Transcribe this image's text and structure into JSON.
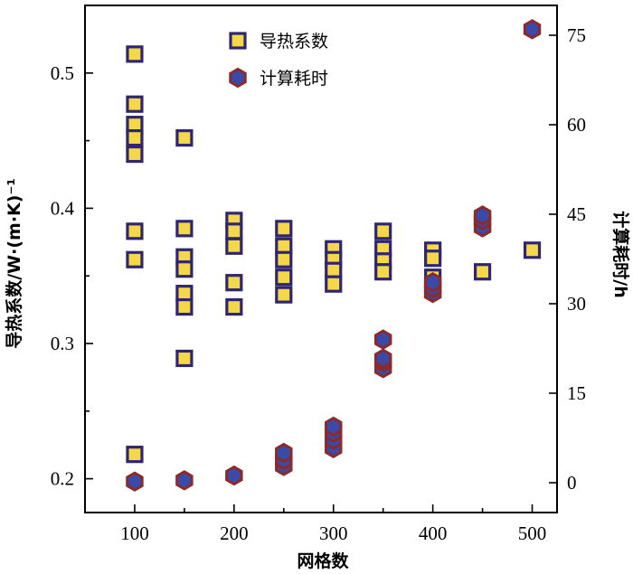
{
  "chart_data": {
    "type": "scatter",
    "xlabel": "网格数",
    "ylabel_left": "导热系数/W·(m·K)⁻¹",
    "ylabel_right": "计算耗时/h",
    "x_ticks": [
      100,
      200,
      300,
      400,
      500
    ],
    "y_left_ticks": [
      0.2,
      0.3,
      0.4,
      0.5
    ],
    "y_right_ticks": [
      0,
      15,
      30,
      45,
      60,
      75
    ],
    "xlim": [
      50,
      525
    ],
    "ylim_left": [
      0.175,
      0.55
    ],
    "ylim_right": [
      -5,
      80
    ],
    "legend_position": "top-center",
    "series": [
      {
        "name": "导热系数",
        "axis": "left",
        "marker": "square",
        "fill": "#f5d84a",
        "edge": "#2e2670",
        "points": [
          [
            100,
            0.514
          ],
          [
            100,
            0.477
          ],
          [
            100,
            0.462
          ],
          [
            100,
            0.452
          ],
          [
            100,
            0.44
          ],
          [
            100,
            0.383
          ],
          [
            100,
            0.362
          ],
          [
            100,
            0.218
          ],
          [
            150,
            0.452
          ],
          [
            150,
            0.385
          ],
          [
            150,
            0.364
          ],
          [
            150,
            0.355
          ],
          [
            150,
            0.337
          ],
          [
            150,
            0.327
          ],
          [
            150,
            0.289
          ],
          [
            200,
            0.391
          ],
          [
            200,
            0.383
          ],
          [
            200,
            0.372
          ],
          [
            200,
            0.345
          ],
          [
            200,
            0.327
          ],
          [
            250,
            0.385
          ],
          [
            250,
            0.372
          ],
          [
            250,
            0.362
          ],
          [
            250,
            0.349
          ],
          [
            250,
            0.336
          ],
          [
            300,
            0.37
          ],
          [
            300,
            0.362
          ],
          [
            300,
            0.354
          ],
          [
            300,
            0.344
          ],
          [
            350,
            0.383
          ],
          [
            350,
            0.37
          ],
          [
            350,
            0.361
          ],
          [
            350,
            0.353
          ],
          [
            400,
            0.369
          ],
          [
            400,
            0.363
          ],
          [
            400,
            0.349
          ],
          [
            450,
            0.353
          ],
          [
            500,
            0.369
          ]
        ]
      },
      {
        "name": "计算耗时",
        "axis": "right",
        "marker": "hexagon",
        "fill": "#3a4aa8",
        "edge": "#8b2a2a",
        "points": [
          [
            100,
            0.2
          ],
          [
            150,
            0.4
          ],
          [
            200,
            1.2
          ],
          [
            250,
            2.8
          ],
          [
            250,
            3.8
          ],
          [
            250,
            5.0
          ],
          [
            300,
            5.8
          ],
          [
            300,
            7.2
          ],
          [
            300,
            8.4
          ],
          [
            300,
            9.4
          ],
          [
            350,
            19.2
          ],
          [
            350,
            20.2
          ],
          [
            350,
            20.8
          ],
          [
            350,
            24.0
          ],
          [
            400,
            31.8
          ],
          [
            400,
            32.6
          ],
          [
            400,
            33.6
          ],
          [
            450,
            42.8
          ],
          [
            450,
            44.0
          ],
          [
            450,
            44.8
          ],
          [
            500,
            76.0
          ]
        ]
      }
    ]
  }
}
